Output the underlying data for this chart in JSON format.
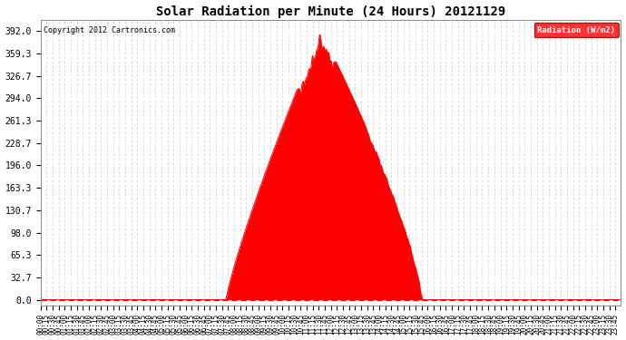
{
  "title": "Solar Radiation per Minute (24 Hours) 20121129",
  "copyright": "Copyright 2012 Cartronics.com",
  "legend_label": "Radiation (W/m2)",
  "background_color": "#ffffff",
  "plot_bg_color": "#ffffff",
  "fill_color": "#ff0000",
  "line_color": "#ff0000",
  "grid_color": "#c8c8c8",
  "grid_color_white": "#ffffff",
  "dashed_zero_color": "#ff0000",
  "ytick_labels": [
    "0.0",
    "32.7",
    "65.3",
    "98.0",
    "130.7",
    "163.3",
    "196.0",
    "228.7",
    "261.3",
    "294.0",
    "326.7",
    "359.3",
    "392.0"
  ],
  "ytick_values": [
    0.0,
    32.7,
    65.3,
    98.0,
    130.7,
    163.3,
    196.0,
    228.7,
    261.3,
    294.0,
    326.7,
    359.3,
    392.0
  ],
  "ymax": 408.0,
  "ymin": -8.0,
  "sunrise_minute": 460,
  "sunset_minute": 946,
  "peak_minute": 695,
  "peak_value": 392.0,
  "title_fontsize": 10,
  "tick_fontsize": 5.5,
  "ytick_fontsize": 7
}
